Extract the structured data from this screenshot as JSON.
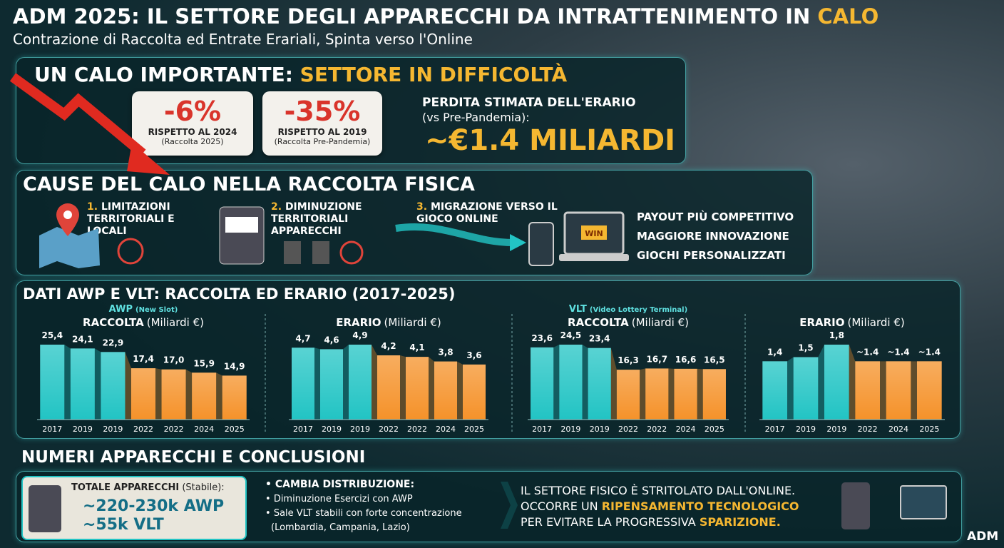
{
  "header": {
    "title": "ADM 2025: IL SETTORE DEGLI APPARECCHI DA INTRATTENIMENTO IN",
    "title_highlight": "CALO",
    "subtitle": "Contrazione di Raccolta ed Entrate Erariali, Spinta verso l'Online"
  },
  "drop": {
    "title": "UN CALO IMPORTANTE:",
    "title_highlight": "SETTORE IN DIFFICOLTÀ",
    "cards": [
      {
        "value": "-6%",
        "label": "RISPETTO AL 2024",
        "note": "(Raccolta 2025)"
      },
      {
        "value": "-35%",
        "label": "RISPETTO AL 2019",
        "note": "(Raccolta Pre-Pandemia)"
      }
    ],
    "loss_title": "PERDITA STIMATA DELL'ERARIO",
    "loss_note": "(vs Pre-Pandemia):",
    "loss_value": "~€1.4 MILIARDI"
  },
  "causes": {
    "title": "CAUSE DEL CALO NELLA RACCOLTA FISICA",
    "items": [
      {
        "number": "1.",
        "label": "LIMITAZIONI TERRITORIALI E LOCALI"
      },
      {
        "number": "2.",
        "label": "DIMINUZIONE TERRITORIALI APPARECCHI"
      },
      {
        "number": "3.",
        "label": "MIGRAZIONE VERSO IL GIOCO ONLINE"
      }
    ],
    "screen_label": "WIN",
    "benefits": [
      "PAYOUT PIÙ COMPETITIVO",
      "MAGGIORE INNOVAZIONE",
      "GIOCHI PERSONALIZZATI"
    ]
  },
  "data_section": {
    "title": "DATI AWP E VLT: RACCOLTA ED ERARIO (2017-2025)"
  },
  "chart_data": [
    {
      "type": "bar",
      "group": "AWP",
      "group_note": "(New Slot)",
      "title": "RACCOLTA",
      "unit": "(Miliardi €)",
      "categories": [
        "2017",
        "2019",
        "2019",
        "2022",
        "2022",
        "2024",
        "2025"
      ],
      "values": [
        25.4,
        24.1,
        22.9,
        17.4,
        17.0,
        15.9,
        14.9
      ],
      "value_labels": [
        "25,4",
        "24,1",
        "22,9",
        "17,4",
        "17,0",
        "15,9",
        "14,9"
      ],
      "colors": [
        "#22c4c4",
        "#22c4c4",
        "#22c4c4",
        "#f5922a",
        "#f5922a",
        "#f5922a",
        "#f5922a"
      ]
    },
    {
      "type": "bar",
      "title": "ERARIO",
      "unit": "(Miliardi €)",
      "categories": [
        "2017",
        "2019",
        "2019",
        "2022",
        "2022",
        "2024",
        "2025"
      ],
      "values": [
        4.7,
        4.6,
        4.9,
        4.2,
        4.1,
        3.8,
        3.6
      ],
      "value_labels": [
        "4,7",
        "4,6",
        "4,9",
        "4,2",
        "4,1",
        "3,8",
        "3,6"
      ],
      "colors": [
        "#22c4c4",
        "#22c4c4",
        "#22c4c4",
        "#f5922a",
        "#f5922a",
        "#f5922a",
        "#f5922a"
      ]
    },
    {
      "type": "bar",
      "group": "VLT",
      "group_note": "(Video Lottery Terminal)",
      "title": "RACCOLTA",
      "unit": "(Miliardi €)",
      "categories": [
        "2017",
        "2019",
        "2019",
        "2022",
        "2022",
        "2024",
        "2025"
      ],
      "values": [
        23.6,
        24.5,
        23.4,
        16.3,
        16.7,
        16.6,
        16.5
      ],
      "value_labels": [
        "23,6",
        "24,5",
        "23,4",
        "16,3",
        "16,7",
        "16,6",
        "16,5"
      ],
      "colors": [
        "#22c4c4",
        "#22c4c4",
        "#22c4c4",
        "#f5922a",
        "#f5922a",
        "#f5922a",
        "#f5922a"
      ]
    },
    {
      "type": "bar",
      "title": "ERARIO",
      "unit": "(Miliardi €)",
      "categories": [
        "2017",
        "2019",
        "2019",
        "2022",
        "2024",
        "2025"
      ],
      "values": [
        1.4,
        1.5,
        1.8,
        1.4,
        1.4,
        1.4
      ],
      "value_labels": [
        "1,4",
        "1,5",
        "1,8",
        "~1.4",
        "~1.4",
        "~1.4"
      ],
      "colors": [
        "#22c4c4",
        "#22c4c4",
        "#22c4c4",
        "#f5922a",
        "#f5922a",
        "#f5922a"
      ]
    }
  ],
  "conclusions": {
    "title": "NUMERI APPARECCHI E CONCLUSIONI",
    "total_label": "TOTALE APPARECCHI",
    "total_note": "(Stabile):",
    "awp": "~220-230k AWP",
    "vlt": "~55k VLT",
    "dist_title": "CAMBIA DISTRIBUZIONE:",
    "bullets": [
      "Diminuzione Esercizi con AWP",
      "Sale VLT stabili con forte concentrazione",
      "(Lombardia, Campania, Lazio)"
    ],
    "line1": "IL SETTORE FISICO È STRITOLATO DALL'ONLINE.",
    "line2": "OCCORRE UN",
    "line2_highlight": "RIPENSAMENTO TECNOLOGICO",
    "line3": "PER EVITARE LA PROGRESSIVA",
    "line3_highlight": "SPARIZIONE."
  },
  "brand": "ADM"
}
